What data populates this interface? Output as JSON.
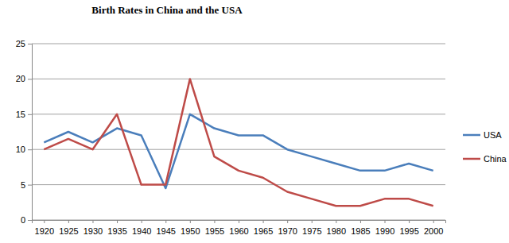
{
  "chart_data": {
    "type": "line",
    "title": "Birth Rates in China and the USA",
    "categories": [
      "1920",
      "1925",
      "1930",
      "1935",
      "1940",
      "1945",
      "1950",
      "1955",
      "1960",
      "1965",
      "1970",
      "1975",
      "1980",
      "1985",
      "1990",
      "1995",
      "2000"
    ],
    "series": [
      {
        "name": "USA",
        "color": "#4a7ebb",
        "values": [
          11,
          12.5,
          11,
          13,
          12,
          4.5,
          15,
          13,
          12,
          12,
          10,
          9,
          8,
          7,
          7,
          8,
          7
        ]
      },
      {
        "name": "China",
        "color": "#be4b48",
        "values": [
          10,
          11.5,
          10,
          15,
          5,
          5,
          20,
          9,
          7,
          6,
          4,
          3,
          2,
          2,
          3,
          3,
          2
        ]
      }
    ],
    "ylim": [
      0,
      25
    ],
    "yticks": [
      0,
      5,
      10,
      15,
      20,
      25
    ],
    "grid": true,
    "legend": "right"
  }
}
